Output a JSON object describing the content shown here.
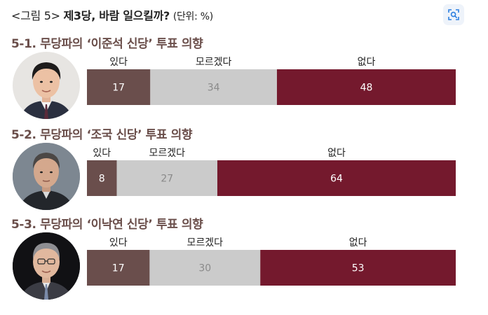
{
  "header": {
    "label": "<그림 5>",
    "title": "제3당, 바람 일으킬까?",
    "unit": "(단위: %)",
    "lens_icon": "image-search-icon"
  },
  "colors": {
    "yes": "#6a4e4c",
    "unsure": "#cbcbcb",
    "no": "#74192d",
    "title_brown": "#6a4e4a"
  },
  "chart_data": [
    {
      "type": "bar",
      "stacked": true,
      "orientation": "horizontal",
      "title": "5-1. 무당파의 ‘이준석 신당’ 투표 의향",
      "categories": [
        "있다",
        "모르겠다",
        "없다"
      ],
      "values": [
        17,
        34,
        48
      ]
    },
    {
      "type": "bar",
      "stacked": true,
      "orientation": "horizontal",
      "title": "5-2. 무당파의 ‘조국 신당’ 투표 의향",
      "categories": [
        "있다",
        "모르겠다",
        "없다"
      ],
      "values": [
        8,
        27,
        64
      ]
    },
    {
      "type": "bar",
      "stacked": true,
      "orientation": "horizontal",
      "title": "5-3. 무당파의 ‘이낙연 신당’ 투표 의향",
      "categories": [
        "있다",
        "모르겠다",
        "없다"
      ],
      "values": [
        17,
        30,
        53
      ]
    }
  ]
}
